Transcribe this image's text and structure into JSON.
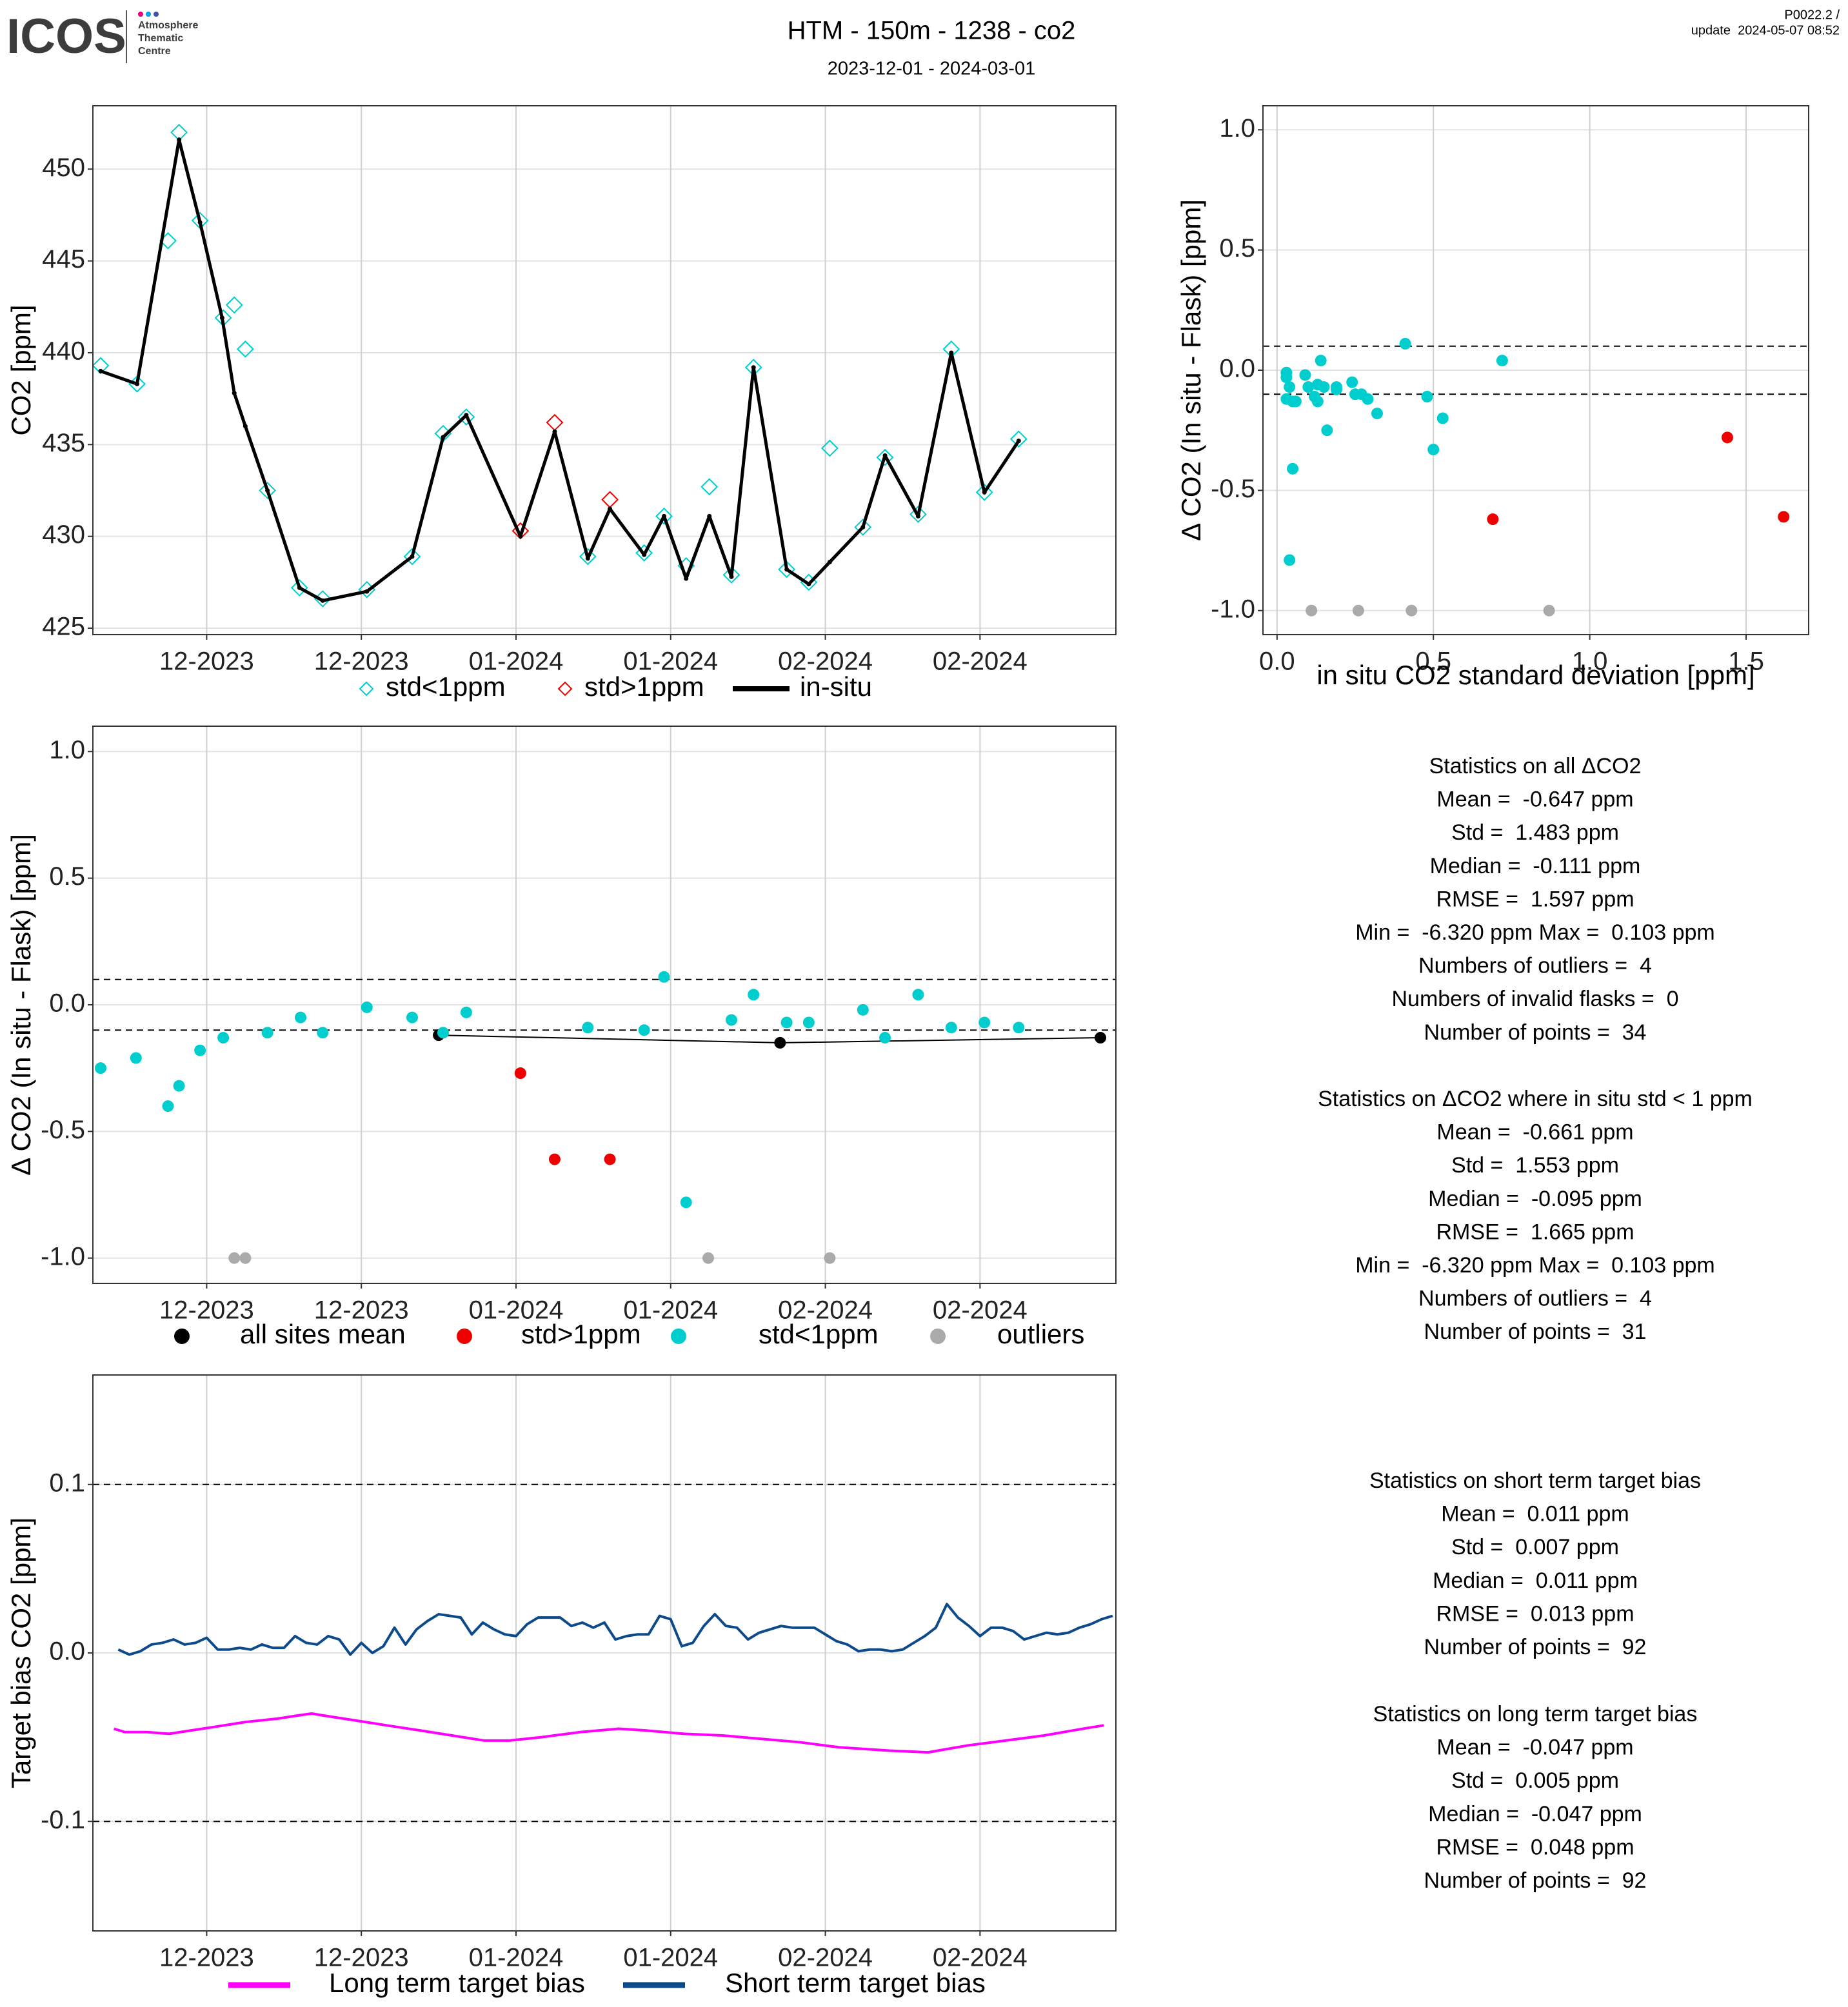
{
  "header": {
    "logo": "ICOS",
    "logo_lines": [
      "Atmosphere",
      "Thematic",
      "Centre"
    ],
    "title": "HTM - 150m - 1238 - co2",
    "subtitle": "2023-12-01 - 2024-03-01",
    "version": [
      "P0022.2 /",
      "update  2024-05-07 08:52"
    ]
  },
  "chart_data": [
    {
      "type": "line",
      "ylabel": "CO2 [ppm]",
      "xlim": [
        -0.3,
        92.3
      ],
      "ylim": [
        424.65,
        453.45
      ],
      "xticks": [
        {
          "value": 10,
          "label": "12-2023"
        },
        {
          "value": 24,
          "label": "12-2023"
        },
        {
          "value": 38,
          "label": "01-2024"
        },
        {
          "value": 52,
          "label": "01-2024"
        },
        {
          "value": 66,
          "label": "02-2024"
        },
        {
          "value": 80,
          "label": "02-2024"
        }
      ],
      "yticks": [
        425,
        430,
        435,
        440,
        445,
        450
      ],
      "grid": true,
      "series": [
        {
          "name": "std<1ppm",
          "color": "#00cdcd",
          "style": "diamond",
          "x": [
            0.4,
            3.7,
            6.5,
            7.5,
            9.4,
            11.5,
            12.5,
            13.5,
            15.5,
            18.4,
            20.5,
            24.5,
            28.6,
            31.4,
            33.5,
            44.5,
            49.6,
            51.4,
            53.4,
            55.5,
            57.5,
            59.5,
            62.5,
            64.5,
            66.4,
            69.4,
            71.4,
            74.4,
            77.4,
            80.4,
            83.5
          ],
          "values": [
            439.3,
            438.3,
            446.1,
            452.0,
            447.2,
            441.9,
            442.6,
            440.2,
            432.5,
            427.2,
            426.6,
            427.1,
            428.9,
            435.6,
            436.5,
            428.9,
            429.1,
            431.1,
            428.4,
            432.7,
            427.9,
            439.2,
            428.2,
            427.5,
            434.8,
            430.5,
            434.3,
            431.2,
            440.2,
            432.4,
            435.3
          ]
        },
        {
          "name": "std>1ppm",
          "color": "#ee0000",
          "style": "diamond",
          "x": [
            38.4,
            41.5,
            46.5
          ],
          "values": [
            430.3,
            436.2,
            432.0
          ]
        },
        {
          "name": "in-situ",
          "color": "#000000",
          "style": "line-dot",
          "x": [
            0.4,
            3.7,
            7.5,
            9.4,
            11.4,
            12.5,
            13.5,
            15.5,
            18.4,
            20.5,
            24.5,
            28.6,
            31.4,
            33.5,
            38.4,
            41.5,
            44.5,
            46.5,
            49.6,
            51.4,
            53.4,
            55.5,
            57.5,
            59.5,
            62.5,
            64.5,
            66.4,
            69.4,
            71.4,
            74.4,
            77.4,
            80.4,
            83.5
          ],
          "values": [
            439.0,
            438.3,
            451.6,
            447.1,
            441.9,
            437.8,
            436.0,
            432.5,
            427.2,
            426.5,
            427.0,
            428.9,
            435.4,
            436.6,
            430.0,
            435.7,
            428.8,
            431.5,
            429.0,
            431.1,
            427.7,
            431.1,
            427.8,
            439.2,
            428.2,
            427.4,
            428.6,
            430.5,
            434.4,
            431.1,
            440.0,
            432.4,
            435.2
          ]
        }
      ]
    },
    {
      "type": "scatter",
      "ylabel": "Δ CO2 (In situ - Flask) [ppm]",
      "xlabel": "in situ CO2 standard deviation [ppm]",
      "xlim": [
        -0.045,
        1.7
      ],
      "ylim": [
        -1.1,
        1.1
      ],
      "xticks": [
        {
          "value": 0,
          "label": "0.0"
        },
        0.5,
        {
          "value": 1,
          "label": "1.0"
        },
        1.5
      ],
      "yticks": [
        {
          "value": -1,
          "label": "-1.0"
        },
        -0.5,
        {
          "value": 0,
          "label": "0.0"
        },
        0.5,
        {
          "value": 1,
          "label": "1.0"
        }
      ],
      "grid": true,
      "hlines": [
        0.1,
        -0.1
      ],
      "series": [
        {
          "color": "#00cdcd",
          "style": "dot",
          "x": [
            0.03,
            0.03,
            0.04,
            0.03,
            0.05,
            0.06,
            0.05,
            0.04,
            0.09,
            0.1,
            0.12,
            0.13,
            0.13,
            0.14,
            0.15,
            0.16,
            0.19,
            0.19,
            0.24,
            0.25,
            0.27,
            0.29,
            0.32,
            0.41,
            0.48,
            0.5,
            0.53,
            0.72
          ],
          "values": [
            -0.01,
            -0.03,
            -0.07,
            -0.12,
            -0.13,
            -0.13,
            -0.41,
            -0.79,
            -0.02,
            -0.07,
            -0.11,
            -0.13,
            -0.06,
            0.04,
            -0.07,
            -0.25,
            -0.07,
            -0.08,
            -0.05,
            -0.1,
            -0.1,
            -0.12,
            -0.18,
            0.11,
            -0.11,
            -0.33,
            -0.2,
            0.04
          ]
        },
        {
          "color": "#ee0000",
          "style": "dot",
          "x": [
            0.69,
            1.44,
            1.62
          ],
          "values": [
            -0.62,
            -0.28,
            -0.61
          ]
        },
        {
          "color": "#aaaaaa",
          "style": "dot",
          "x": [
            0.11,
            0.26,
            0.43,
            0.87
          ],
          "values": [
            -1,
            -1,
            -1,
            -1
          ]
        }
      ]
    },
    {
      "type": "scatter",
      "ylabel": "Δ CO2 (In situ - Flask) [ppm]",
      "xlim": [
        -0.3,
        92.3
      ],
      "ylim": [
        -1.1,
        1.1
      ],
      "xticks": [
        {
          "value": 10,
          "label": "12-2023"
        },
        {
          "value": 24,
          "label": "12-2023"
        },
        {
          "value": 38,
          "label": "01-2024"
        },
        {
          "value": 52,
          "label": "01-2024"
        },
        {
          "value": 66,
          "label": "02-2024"
        },
        {
          "value": 80,
          "label": "02-2024"
        }
      ],
      "yticks": [
        {
          "value": -1,
          "label": "-1.0"
        },
        -0.5,
        {
          "value": 0,
          "label": "0.0"
        },
        0.5,
        {
          "value": 1,
          "label": "1.0"
        }
      ],
      "grid": true,
      "hlines": [
        0.1,
        -0.1
      ],
      "series": [
        {
          "name": "all sites mean",
          "color": "#000000",
          "style": "line-dot",
          "x": [
            31.0,
            61.9,
            90.9
          ],
          "values": [
            -0.12,
            -0.15,
            -0.13
          ]
        },
        {
          "name": "std<1ppm",
          "color": "#00cdcd",
          "style": "dot",
          "x": [
            0.4,
            3.6,
            6.5,
            7.5,
            9.4,
            11.5,
            15.5,
            18.5,
            20.5,
            24.5,
            28.6,
            31.4,
            33.5,
            44.5,
            49.6,
            51.4,
            53.4,
            57.5,
            59.5,
            62.5,
            64.5,
            69.4,
            71.4,
            74.4,
            77.4,
            80.4,
            83.5
          ],
          "values": [
            -0.25,
            -0.21,
            -0.4,
            -0.32,
            -0.18,
            -0.13,
            -0.11,
            -0.05,
            -0.11,
            -0.01,
            -0.05,
            -0.11,
            -0.03,
            -0.09,
            -0.1,
            0.11,
            -0.78,
            -0.06,
            0.04,
            -0.07,
            -0.07,
            -0.02,
            -0.13,
            0.04,
            -0.09,
            -0.07,
            -0.09
          ]
        },
        {
          "name": "std>1ppm",
          "color": "#ee0000",
          "style": "dot",
          "x": [
            38.4,
            41.5,
            46.5
          ],
          "values": [
            -0.27,
            -0.61,
            -0.61
          ]
        },
        {
          "name": "outliers",
          "color": "#aaaaaa",
          "style": "dot",
          "x": [
            12.5,
            13.5,
            55.4,
            66.4
          ],
          "values": [
            -1,
            -1,
            -1,
            -1
          ]
        }
      ]
    },
    {
      "type": "line",
      "ylabel": "Target bias CO2 [ppm]",
      "xlim": [
        -0.3,
        92.3
      ],
      "ylim": [
        -0.165,
        0.165
      ],
      "xticks": [
        {
          "value": 10,
          "label": "12-2023"
        },
        {
          "value": 24,
          "label": "12-2023"
        },
        {
          "value": 38,
          "label": "01-2024"
        },
        {
          "value": 52,
          "label": "01-2024"
        },
        {
          "value": 66,
          "label": "02-2024"
        },
        {
          "value": 80,
          "label": "02-2024"
        }
      ],
      "yticks": [
        -0.1,
        {
          "value": 0,
          "label": "0.0"
        },
        0.1
      ],
      "grid": true,
      "hlines": [
        0.1,
        -0.1
      ],
      "series": [
        {
          "name": "Long term target bias",
          "color": "#ff00ff",
          "style": "line",
          "x": [
            1.6,
            2.6,
            4.6,
            6.6,
            8.6,
            10.6,
            13.5,
            16.4,
            18.4,
            19.5,
            21.4,
            23.4,
            26.3,
            29.3,
            32.2,
            35.1,
            37.4,
            40.3,
            43.8,
            47.3,
            49.7,
            53.2,
            56.7,
            60.2,
            63.7,
            67.2,
            71.8,
            75.3,
            78.8,
            82.3,
            85.8,
            89.3,
            91.2
          ],
          "values": [
            -0.045,
            -0.047,
            -0.047,
            -0.048,
            -0.046,
            -0.044,
            -0.041,
            -0.039,
            -0.037,
            -0.036,
            -0.038,
            -0.04,
            -0.043,
            -0.046,
            -0.049,
            -0.052,
            -0.052,
            -0.05,
            -0.047,
            -0.045,
            -0.046,
            -0.048,
            -0.049,
            -0.051,
            -0.053,
            -0.056,
            -0.058,
            -0.059,
            -0.055,
            -0.052,
            -0.049,
            -0.045,
            -0.043
          ]
        },
        {
          "name": "Short term target bias",
          "color": "#0d4a8a",
          "style": "line",
          "x": [
            2,
            3,
            4,
            5,
            6,
            7,
            8,
            9,
            10,
            11,
            12,
            13,
            14,
            15,
            16,
            17,
            18,
            19,
            20,
            21,
            22,
            23,
            24,
            25,
            26,
            27,
            28,
            29,
            30,
            31,
            32,
            33,
            34,
            35,
            36,
            37,
            38,
            39,
            40,
            41,
            42,
            43,
            44,
            45,
            46,
            47,
            48,
            49,
            50,
            51,
            52,
            53,
            54,
            55,
            56,
            57,
            58,
            59,
            60,
            61,
            62,
            63,
            64,
            65,
            66,
            67,
            68,
            69,
            70,
            71,
            72,
            73,
            74,
            75,
            76,
            77,
            78,
            79,
            80,
            81,
            82,
            83,
            84,
            85,
            86,
            87,
            88,
            89,
            90,
            91,
            92
          ],
          "values": [
            0.002,
            -0.001,
            0.001,
            0.005,
            0.006,
            0.008,
            0.005,
            0.006,
            0.009,
            0.002,
            0.002,
            0.003,
            0.002,
            0.005,
            0.003,
            0.003,
            0.01,
            0.006,
            0.005,
            0.01,
            0.008,
            -0.001,
            0.006,
            0.0,
            0.004,
            0.015,
            0.005,
            0.014,
            0.019,
            0.023,
            0.022,
            0.021,
            0.011,
            0.018,
            0.014,
            0.011,
            0.01,
            0.017,
            0.021,
            0.021,
            0.021,
            0.016,
            0.018,
            0.015,
            0.018,
            0.008,
            0.01,
            0.011,
            0.011,
            0.022,
            0.02,
            0.004,
            0.006,
            0.016,
            0.023,
            0.016,
            0.015,
            0.008,
            0.012,
            0.014,
            0.016,
            0.015,
            0.015,
            0.015,
            0.011,
            0.007,
            0.005,
            0.001,
            0.002,
            0.002,
            0.001,
            0.002,
            0.006,
            0.01,
            0.015,
            0.029,
            0.021,
            0.016,
            0.01,
            0.015,
            0.015,
            0.013,
            0.008,
            0.01,
            0.012,
            0.011,
            0.012,
            0.015,
            0.017,
            0.02,
            0.022
          ]
        }
      ]
    }
  ],
  "stats": [
    [
      "Statistics on all ΔCO2",
      "Mean =  -0.647 ppm",
      "Std =  1.483 ppm",
      "Median =  -0.111 ppm",
      "RMSE =  1.597 ppm",
      "Min =  -6.320 ppm Max =  0.103 ppm",
      "Numbers of outliers =  4",
      "Numbers of invalid flasks =  0",
      "Number of points =  34"
    ],
    [
      "Statistics on ΔCO2 where in situ std < 1 ppm",
      "Mean =  -0.661 ppm",
      "Std =  1.553 ppm",
      "Median =  -0.095 ppm",
      "RMSE =  1.665 ppm",
      "Min =  -6.320 ppm Max =  0.103 ppm",
      "Numbers of outliers =  4",
      "Number of points =  31"
    ],
    [
      "Statistics on short term target bias",
      "Mean =  0.011 ppm",
      "Std =  0.007 ppm",
      "Median =  0.011 ppm",
      "RMSE =  0.013 ppm",
      "Number of points =  92"
    ],
    [
      "Statistics on long term target bias",
      "Mean =  -0.047 ppm",
      "Std =  0.005 ppm",
      "Median =  -0.047 ppm",
      "RMSE =  0.048 ppm",
      "Number of points =  92"
    ]
  ]
}
